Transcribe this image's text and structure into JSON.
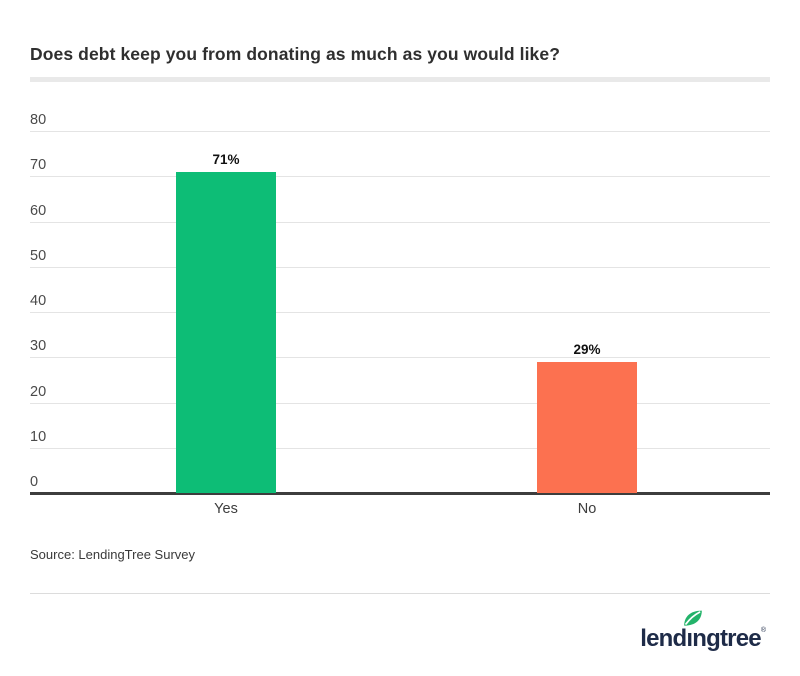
{
  "header": {
    "title": "Does debt keep you from donating as much as you would like?"
  },
  "chart_data": {
    "type": "bar",
    "title": "Does debt keep you from donating as much as you would like?",
    "categories": [
      "Yes",
      "No"
    ],
    "values": [
      71,
      29
    ],
    "value_labels": [
      "71%",
      "29%"
    ],
    "bar_colors": [
      "#0dbd76",
      "#fc7150"
    ],
    "xlabel": "",
    "ylabel": "",
    "ylim": [
      0,
      80
    ],
    "ytick_step": 10,
    "yticks": [
      0,
      10,
      20,
      30,
      40,
      50,
      60,
      70,
      80
    ],
    "grid": "horizontal",
    "legend": "none",
    "unit": "percent"
  },
  "footer": {
    "source": "Source: LendingTree Survey"
  },
  "logo": {
    "brand": "lendingtree",
    "brand_pre": "lend",
    "brand_i": "ı",
    "brand_post": "ngtree",
    "registered": "®",
    "brand_color": "#1e2b48",
    "leaf_color": "#23b36a"
  },
  "colors": {
    "yes_bar": "#0dbd76",
    "no_bar": "#fc7150",
    "gridline": "#e4e4e4",
    "axis_baseline": "#3d3d3d",
    "title_text": "#2f2f2f"
  }
}
